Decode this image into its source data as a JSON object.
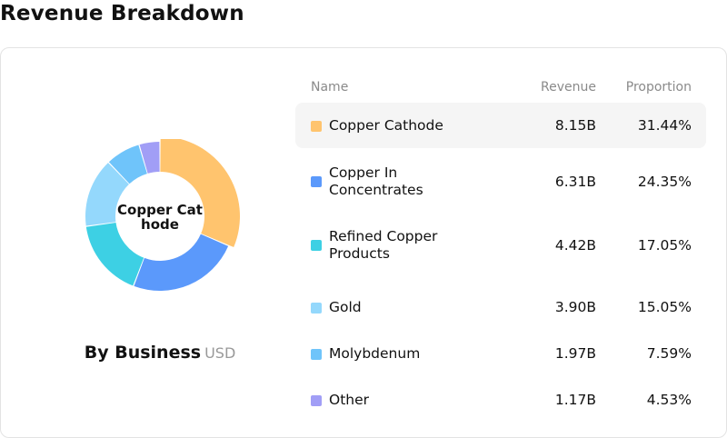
{
  "page_title": "Revenue Breakdown",
  "center_label": "Copper Cathode",
  "footer": {
    "title": "By Business",
    "unit": "USD"
  },
  "table_headers": {
    "name": "Name",
    "revenue": "Revenue",
    "proportion": "Proportion"
  },
  "rows": [
    {
      "name": "Copper Cathode",
      "revenue": "8.15B",
      "proportion": "31.44%",
      "color": "#FFC46E"
    },
    {
      "name": "Copper In Concentrates",
      "revenue": "6.31B",
      "proportion": "24.35%",
      "color": "#5B99FB"
    },
    {
      "name": "Refined Copper Products",
      "revenue": "4.42B",
      "proportion": "17.05%",
      "color": "#3DD0E4"
    },
    {
      "name": "Gold",
      "revenue": "3.90B",
      "proportion": "15.05%",
      "color": "#94D8FC"
    },
    {
      "name": "Molybdenum",
      "revenue": "1.97B",
      "proportion": "7.59%",
      "color": "#6FC4FA"
    },
    {
      "name": "Other",
      "revenue": "1.17B",
      "proportion": "4.53%",
      "color": "#A19EF6"
    }
  ],
  "chart_data": {
    "type": "pie",
    "variant": "donut",
    "categories": [
      "Copper Cathode",
      "Copper In Concentrates",
      "Refined Copper Products",
      "Gold",
      "Molybdenum",
      "Other"
    ],
    "values": [
      31.44,
      24.35,
      17.05,
      15.05,
      7.59,
      4.53
    ],
    "revenue": [
      "8.15B",
      "6.31B",
      "4.42B",
      "3.90B",
      "1.97B",
      "1.17B"
    ],
    "colors": [
      "#FFC46E",
      "#5B99FB",
      "#3DD0E4",
      "#94D8FC",
      "#6FC4FA",
      "#A19EF6"
    ],
    "highlighted": "Copper Cathode"
  }
}
